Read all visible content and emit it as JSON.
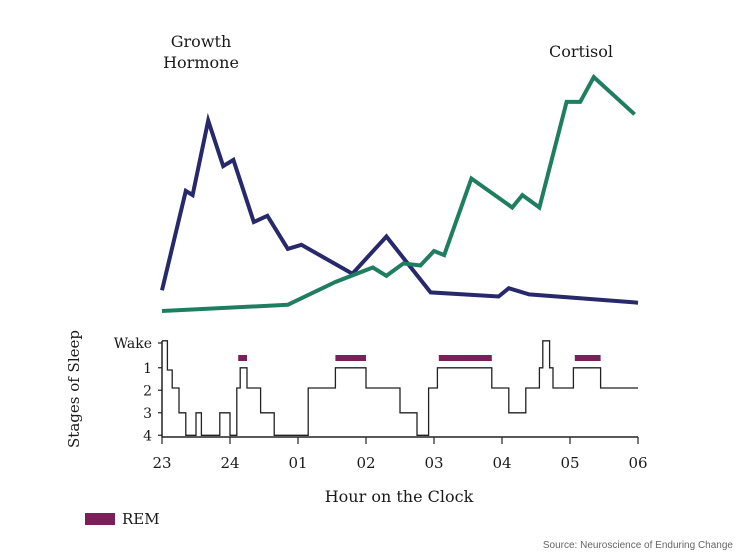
{
  "chart_data": [
    {
      "type": "line",
      "title": "",
      "xlabel": "",
      "ylabel": "",
      "x_range": [
        23,
        30
      ],
      "y_range": [
        0,
        100
      ],
      "series": [
        {
          "name": "Growth Hormone",
          "color": "#27296b",
          "points": [
            [
              23.0,
              10
            ],
            [
              23.35,
              58
            ],
            [
              23.45,
              56
            ],
            [
              23.68,
              92
            ],
            [
              23.9,
              70
            ],
            [
              24.05,
              73
            ],
            [
              24.35,
              43
            ],
            [
              24.55,
              46
            ],
            [
              24.85,
              30
            ],
            [
              25.05,
              32
            ],
            [
              25.8,
              18
            ],
            [
              26.3,
              36
            ],
            [
              26.95,
              9
            ],
            [
              27.95,
              7
            ],
            [
              28.1,
              11
            ],
            [
              28.4,
              8
            ],
            [
              30.0,
              4
            ]
          ]
        },
        {
          "name": "Cortisol",
          "color": "#1f7e60",
          "points": [
            [
              23.0,
              0
            ],
            [
              24.85,
              3
            ],
            [
              25.55,
              14
            ],
            [
              26.1,
              21
            ],
            [
              26.3,
              17
            ],
            [
              26.55,
              23
            ],
            [
              26.8,
              22
            ],
            [
              27.0,
              29
            ],
            [
              27.15,
              27
            ],
            [
              27.55,
              64
            ],
            [
              28.15,
              50
            ],
            [
              28.3,
              56
            ],
            [
              28.55,
              50
            ],
            [
              28.95,
              101
            ],
            [
              29.15,
              101
            ],
            [
              29.35,
              113
            ],
            [
              29.95,
              95
            ]
          ]
        }
      ]
    },
    {
      "type": "line",
      "title": "",
      "xlabel": "Hour on the Clock",
      "ylabel": "Stages of Sleep",
      "x_ticks": [
        "23",
        "24",
        "01",
        "02",
        "03",
        "04",
        "05",
        "06"
      ],
      "y_ticks": [
        "Wake",
        "1",
        "2",
        "3",
        "4"
      ],
      "y_range": [
        4,
        -0.3
      ],
      "hypnogram": [
        [
          23.0,
          -0.2
        ],
        [
          23.08,
          1.1
        ],
        [
          23.15,
          1.9
        ],
        [
          23.25,
          3.0
        ],
        [
          23.35,
          4.0
        ],
        [
          23.5,
          3.0
        ],
        [
          23.58,
          4.0
        ],
        [
          23.85,
          3.0
        ],
        [
          24.0,
          4.0
        ],
        [
          24.1,
          1.9
        ],
        [
          24.15,
          1.0
        ],
        [
          24.25,
          1.9
        ],
        [
          24.45,
          3.0
        ],
        [
          24.65,
          4.0
        ],
        [
          25.15,
          1.9
        ],
        [
          25.55,
          1.0
        ],
        [
          26.0,
          1.9
        ],
        [
          26.5,
          3.0
        ],
        [
          26.75,
          4.0
        ],
        [
          26.92,
          1.9
        ],
        [
          27.05,
          1.0
        ],
        [
          27.85,
          1.9
        ],
        [
          28.1,
          3.0
        ],
        [
          28.35,
          1.9
        ],
        [
          28.55,
          1.0
        ],
        [
          28.6,
          -0.2
        ],
        [
          28.7,
          1.0
        ],
        [
          28.75,
          1.9
        ],
        [
          29.05,
          1.0
        ],
        [
          29.45,
          1.9
        ],
        [
          30.0,
          1.9
        ]
      ],
      "rem_periods": [
        [
          24.12,
          24.25
        ],
        [
          25.55,
          26.0
        ],
        [
          27.07,
          27.85
        ],
        [
          29.07,
          29.45
        ]
      ],
      "rem_color": "#7b1f5a"
    }
  ],
  "labels": {
    "growth_hormone_line1": "Growth",
    "growth_hormone_line2": "Hormone",
    "cortisol": "Cortisol"
  },
  "legend": {
    "rem_label": "REM",
    "rem_color": "#7b1f5a"
  },
  "source": "Source: Neuroscience of Enduring Change"
}
